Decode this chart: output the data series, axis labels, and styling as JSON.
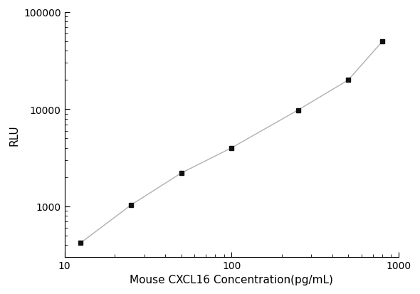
{
  "x": [
    12.5,
    25,
    50,
    100,
    250,
    500,
    800
  ],
  "y": [
    420,
    1030,
    2200,
    4000,
    9800,
    20000,
    50000
  ],
  "xlim": [
    10,
    1000
  ],
  "ylim": [
    300,
    100000
  ],
  "xlabel": "Mouse CXCL16 Concentration(pg/mL)",
  "ylabel": "RLU",
  "line_color": "#b0b0b0",
  "marker_color": "#111111",
  "marker": "s",
  "marker_size": 5,
  "background_color": "#ffffff",
  "axis_color": "#000000",
  "font_size": 10,
  "label_font_size": 11,
  "yticks": [
    1000,
    10000,
    100000
  ],
  "xticks": [
    10,
    100,
    1000
  ]
}
